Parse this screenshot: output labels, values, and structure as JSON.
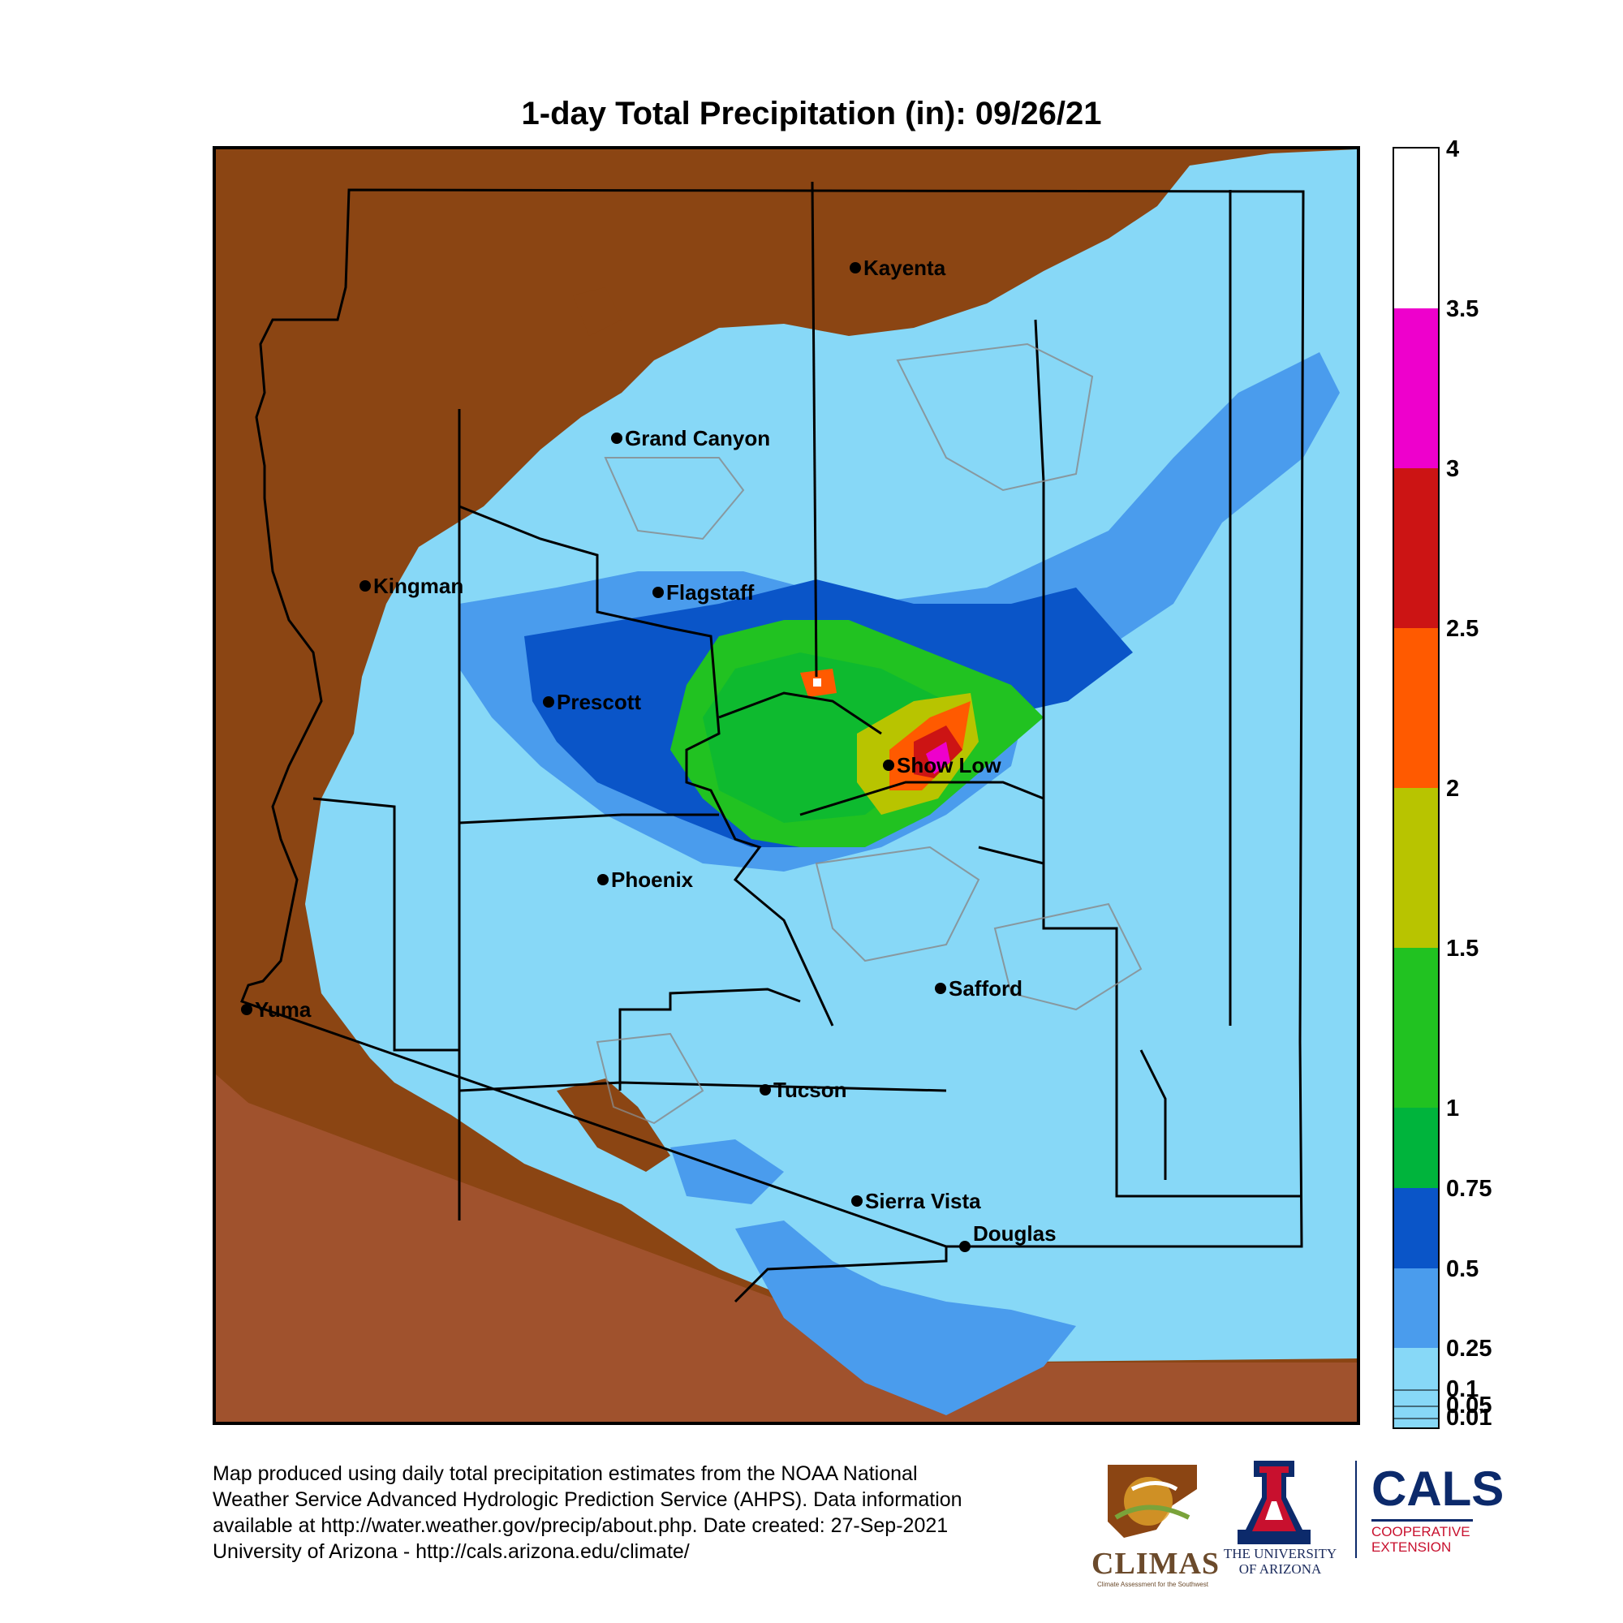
{
  "title": "1-day Total Precipitation (in): 09/26/21",
  "colors": {
    "no_data_outside": "#a0522d",
    "zero_precip": "#8b4513",
    "lt_0.25": "#87d8f7",
    "0.25_0.5": "#4a9ced",
    "0.5_0.75": "#0a55c8",
    "0.75_1": "#00b43c",
    "1_1.5": "#21c221",
    "1.5_2": "#b8c400",
    "2_2.5": "#ff5a00",
    "2.5_3": "#cc1414",
    "3_3.5": "#ee00cc",
    "3.5_4": "#ffffff"
  },
  "legend": {
    "ticks": [
      "4",
      "3.5",
      "3",
      "2.5",
      "2",
      "1.5",
      "1",
      "0.75",
      "0.5",
      "0.25",
      "0.1",
      "0.05",
      "0.01"
    ],
    "bands": [
      {
        "from": 3.5,
        "to": 4,
        "color": "#ffffff"
      },
      {
        "from": 3,
        "to": 3.5,
        "color": "#ee00cc"
      },
      {
        "from": 2.5,
        "to": 3,
        "color": "#cc1414"
      },
      {
        "from": 2,
        "to": 2.5,
        "color": "#ff5a00"
      },
      {
        "from": 1.5,
        "to": 2,
        "color": "#b8c400"
      },
      {
        "from": 1,
        "to": 1.5,
        "color": "#21c221"
      },
      {
        "from": 0.75,
        "to": 1,
        "color": "#00b43c"
      },
      {
        "from": 0.5,
        "to": 0.75,
        "color": "#0a55c8"
      },
      {
        "from": 0.25,
        "to": 0.5,
        "color": "#4a9ced"
      },
      {
        "from": 0.01,
        "to": 0.25,
        "color": "#87d8f7"
      }
    ]
  },
  "cities": [
    {
      "name": "Kayenta"
    },
    {
      "name": "Grand Canyon"
    },
    {
      "name": "Kingman"
    },
    {
      "name": "Flagstaff"
    },
    {
      "name": "Prescott"
    },
    {
      "name": "Show Low"
    },
    {
      "name": "Phoenix"
    },
    {
      "name": "Safford"
    },
    {
      "name": "Yuma"
    },
    {
      "name": "Tucson"
    },
    {
      "name": "Sierra Vista"
    },
    {
      "name": "Douglas"
    }
  ],
  "footer": {
    "line1": "Map produced using daily total precipitation estimates from the NOAA National",
    "line2": "Weather Service Advanced Hydrologic Prediction Service (AHPS). Data information",
    "line3": "available at http://water.weather.gov/precip/about.php. Date created: 27-Sep-2021",
    "line4": "University of Arizona - http://cals.arizona.edu/climate/"
  },
  "logos": {
    "climas": "CLIMAS",
    "climas_sub": "Climate Assessment for the Southwest",
    "ua_line1": "THE UNIVERSITY",
    "ua_line2": "OF ARIZONA",
    "ua_letter": "A",
    "cals": "CALS",
    "cals_sub1": "COOPERATIVE",
    "cals_sub2": "EXTENSION"
  }
}
